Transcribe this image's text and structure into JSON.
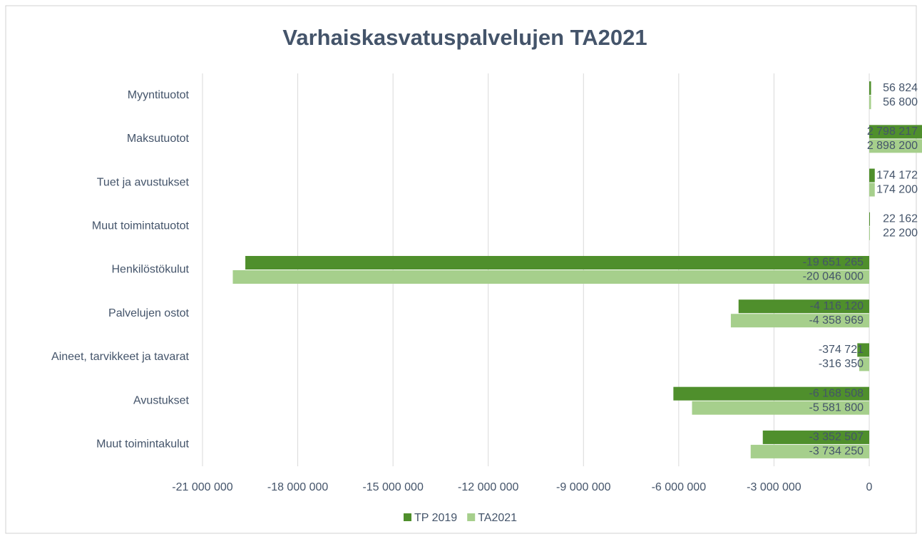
{
  "chart_data": {
    "type": "bar",
    "orientation": "horizontal",
    "title": "Varhaiskasvatuspalvelujen TA2021",
    "categories": [
      "Myyntituotot",
      "Maksutuotot",
      "Tuet ja avustukset",
      "Muut toimintatuotot",
      "Henkilöstökulut",
      "Palvelujen ostot",
      "Aineet, tarvikkeet ja tavarat",
      "Avustukset",
      "Muut toimintakulut"
    ],
    "series": [
      {
        "name": "TP 2019",
        "color": "#4f8f2c",
        "values": [
          56824,
          2798217,
          174172,
          22162,
          -19651265,
          -4116120,
          -374721,
          -6168508,
          -3352507
        ],
        "value_labels": [
          "56 824",
          "2 798 217",
          "174 172",
          "22 162",
          "-19 651 265",
          "-4 116 120",
          "-374 721",
          "-6 168 508",
          "-3 352 507"
        ]
      },
      {
        "name": "TA2021",
        "color": "#a6cf8c",
        "values": [
          56800,
          2898200,
          174200,
          22200,
          -20046000,
          -4358969,
          -316350,
          -5581800,
          -3734250
        ],
        "value_labels": [
          "56 800",
          "2 898 200",
          "174 200",
          "22 200",
          "-20 046 000",
          "-4 358 969",
          "-316 350",
          "-5 581 800",
          "-3 734 250"
        ]
      }
    ],
    "xlim": [
      -21000000,
      0
    ],
    "xticks": [
      {
        "value": -21000000,
        "label": "-21 000 000"
      },
      {
        "value": -18000000,
        "label": "-18 000 000"
      },
      {
        "value": -15000000,
        "label": "-15 000 000"
      },
      {
        "value": -12000000,
        "label": "-12 000 000"
      },
      {
        "value": -9000000,
        "label": "-9 000 000"
      },
      {
        "value": -6000000,
        "label": "-6 000 000"
      },
      {
        "value": -3000000,
        "label": "-3 000 000"
      },
      0
    ],
    "grid": true,
    "legend": "bottom"
  }
}
